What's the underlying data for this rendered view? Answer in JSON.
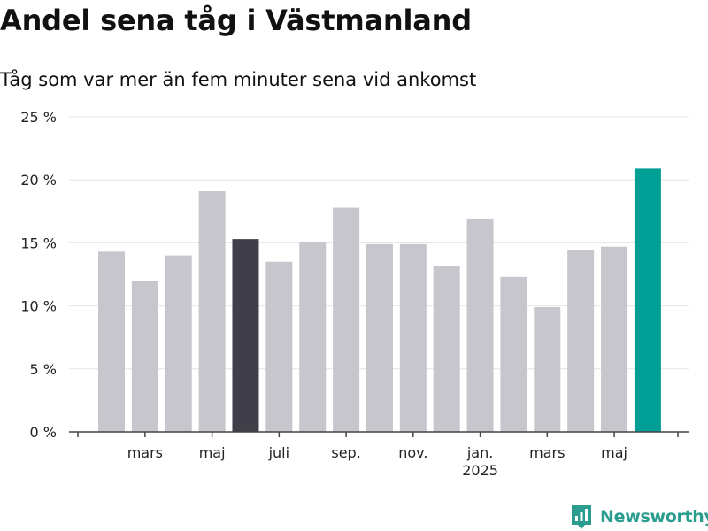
{
  "title": "Andel sena tåg i Västmanland",
  "subtitle": "Tåg som var mer än fem minuter sena vid ankomst",
  "brand": {
    "name": "Newsworthy",
    "icon": "newsworthy-logo-icon"
  },
  "colors": {
    "default_bar": "#c7c6cd",
    "highlight_previous": "#3f3e49",
    "highlight_latest": "#009f95",
    "grid": "#e4e4e4",
    "axis": "#444444",
    "brand": "#2a9d8f"
  },
  "chart_data": {
    "type": "bar",
    "unit": "%",
    "categories": [
      "2024-02",
      "2024-03",
      "2024-04",
      "2024-05",
      "2024-06",
      "2024-07",
      "2024-08",
      "2024-09",
      "2024-10",
      "2024-11",
      "2024-12",
      "2025-01",
      "2025-02",
      "2025-03",
      "2025-04",
      "2025-05",
      "2025-06"
    ],
    "values": [
      14.3,
      12.0,
      14.0,
      19.1,
      15.3,
      13.5,
      15.1,
      17.8,
      14.9,
      14.9,
      13.2,
      16.9,
      12.3,
      9.9,
      14.4,
      14.7,
      20.9
    ],
    "highlight": [
      "default",
      "default",
      "default",
      "default",
      "previous",
      "default",
      "default",
      "default",
      "default",
      "default",
      "default",
      "default",
      "default",
      "default",
      "default",
      "default",
      "latest"
    ],
    "ylim": [
      0,
      25
    ],
    "yticks": [
      {
        "value": 0,
        "label": "0 %"
      },
      {
        "value": 5,
        "label": "5 %"
      },
      {
        "value": 10,
        "label": "10 %"
      },
      {
        "value": 15,
        "label": "15 %"
      },
      {
        "value": 20,
        "label": "20 %"
      },
      {
        "value": 25,
        "label": "25 %"
      }
    ],
    "xtick_labels": [
      {
        "index": 1,
        "label": "mars"
      },
      {
        "index": 3,
        "label": "maj"
      },
      {
        "index": 5,
        "label": "juli"
      },
      {
        "index": 7,
        "label": "sep."
      },
      {
        "index": 9,
        "label": "nov."
      },
      {
        "index": 11,
        "label": "jan.",
        "sublabel": "2025"
      },
      {
        "index": 13,
        "label": "mars"
      },
      {
        "index": 15,
        "label": "maj"
      }
    ],
    "grid": true,
    "xlabel": "",
    "ylabel": ""
  }
}
